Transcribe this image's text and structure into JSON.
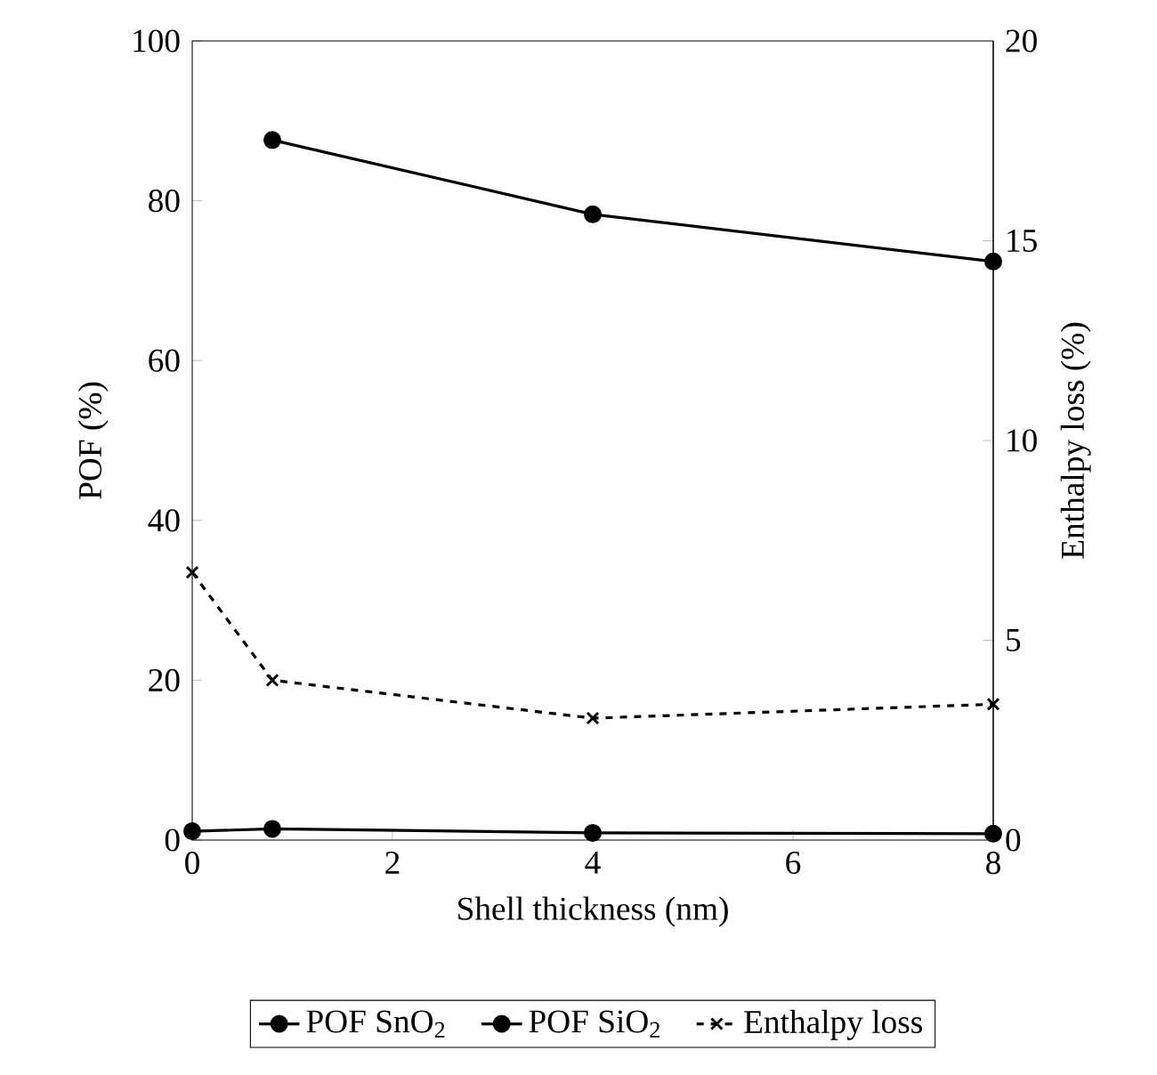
{
  "chart_data": {
    "type": "line",
    "xlabel": "Shell thickness (nm)",
    "ylabel": "POF (%)",
    "y2label": "Enthalpy loss (%)",
    "x": [
      0,
      0.8,
      4,
      8
    ],
    "xlim": [
      0,
      8
    ],
    "xticks": [
      0,
      2,
      4,
      6,
      8
    ],
    "ylim": [
      0,
      100
    ],
    "yticks": [
      0,
      20,
      40,
      60,
      80,
      100
    ],
    "y2lim": [
      0,
      20
    ],
    "y2ticks": [
      0,
      5,
      10,
      15,
      20
    ],
    "legend": "bottom",
    "series": [
      {
        "name": "POF SnO$_{2}$",
        "color": "#000000",
        "marker": "circle",
        "line_style": "solid",
        "values": [
          1.1,
          1.4,
          0.9,
          0.8
        ]
      },
      {
        "name": "POF SiO$_{2}$",
        "color": "#000000",
        "marker": "circle",
        "line_style": "solid",
        "x": [
          0.8,
          4,
          8
        ],
        "values": [
          87.6,
          78.3,
          72.4
        ]
      },
      {
        "name": "Enthalpy loss",
        "color": "#000000",
        "axis": "y2",
        "marker": "cross",
        "line_style": "dashed",
        "values": [
          6.7,
          4.0,
          3.05,
          3.4
        ]
      }
    ]
  }
}
